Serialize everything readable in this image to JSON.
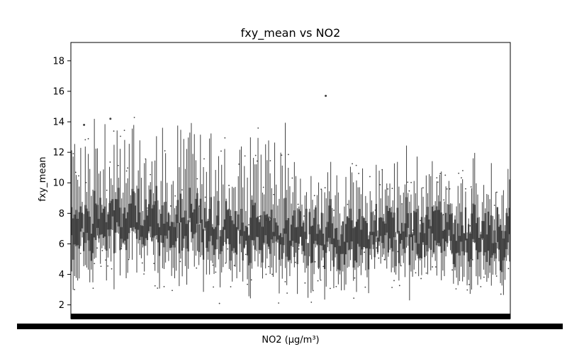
{
  "chart_data": {
    "type": "box",
    "title": "fxy_mean vs NO2",
    "xlabel": "NO2 (µg/m³)",
    "ylabel": "fxy_mean",
    "ylim": [
      1.1,
      19.2
    ],
    "yticks": [
      2,
      4,
      6,
      8,
      10,
      12,
      14,
      16,
      18
    ],
    "x_tick_labels_legible": false,
    "grid": false,
    "legend": "none",
    "n_categories_approx": 290,
    "series": [
      {
        "values_summary": "one vertical box/whisker per NO2 value; medians mostly 5.5–7.5, whiskers spanning roughly 2.2–16.1, scattered outlier dots up to ~15.7"
      }
    ],
    "colors": {
      "mark": "#404040",
      "axis": "#000000",
      "background": "#ffffff"
    }
  }
}
